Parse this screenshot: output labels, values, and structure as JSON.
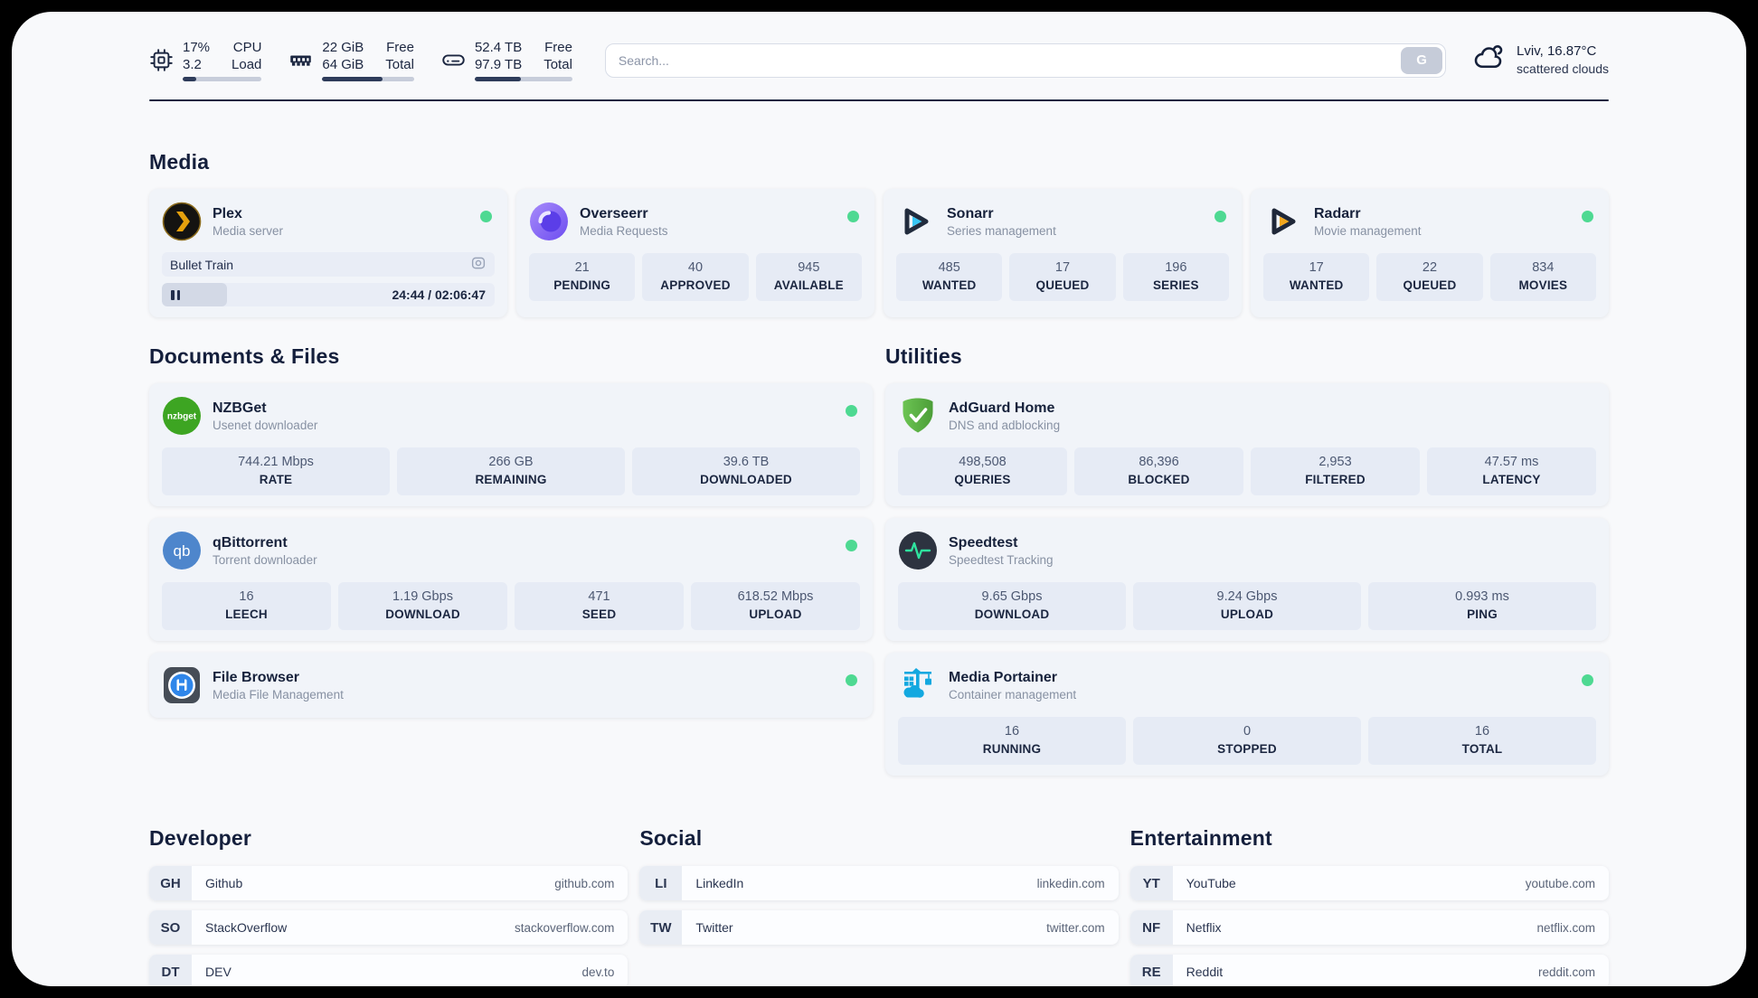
{
  "header": {
    "stats": [
      {
        "icon": "cpu-icon",
        "values": [
          "17%",
          "3.2"
        ],
        "labels": [
          "CPU",
          "Load"
        ],
        "progress": 17
      },
      {
        "icon": "memory-icon",
        "values": [
          "22 GiB",
          "64 GiB"
        ],
        "labels": [
          "Free",
          "Total"
        ],
        "progress": 66
      },
      {
        "icon": "disk-icon",
        "values": [
          "52.4 TB",
          "97.9 TB"
        ],
        "labels": [
          "Free",
          "Total"
        ],
        "progress": 47
      }
    ],
    "search": {
      "placeholder": "Search...",
      "button_label": "G"
    },
    "weather": {
      "location": "Lviv, 16.87°C",
      "condition": "scattered clouds"
    }
  },
  "sections": {
    "media": {
      "title": "Media",
      "apps": [
        {
          "name": "Plex",
          "description": "Media server",
          "icon": "plex-icon",
          "online": true,
          "player": {
            "title": "Bullet Train",
            "time": "24:44 / 02:06:47",
            "progress": 19.5
          }
        },
        {
          "name": "Overseerr",
          "description": "Media Requests",
          "icon": "overseerr-icon",
          "online": true,
          "stats": [
            {
              "value": "21",
              "label": "PENDING"
            },
            {
              "value": "40",
              "label": "APPROVED"
            },
            {
              "value": "945",
              "label": "AVAILABLE"
            }
          ]
        },
        {
          "name": "Sonarr",
          "description": "Series management",
          "icon": "sonarr-icon",
          "online": true,
          "stats": [
            {
              "value": "485",
              "label": "WANTED"
            },
            {
              "value": "17",
              "label": "QUEUED"
            },
            {
              "value": "196",
              "label": "SERIES"
            }
          ]
        },
        {
          "name": "Radarr",
          "description": "Movie management",
          "icon": "radarr-icon",
          "online": true,
          "stats": [
            {
              "value": "17",
              "label": "WANTED"
            },
            {
              "value": "22",
              "label": "QUEUED"
            },
            {
              "value": "834",
              "label": "MOVIES"
            }
          ]
        }
      ]
    },
    "documents": {
      "title": "Documents & Files",
      "apps": [
        {
          "name": "NZBGet",
          "description": "Usenet downloader",
          "icon": "nzbget-icon",
          "online": true,
          "stats": [
            {
              "value": "744.21 Mbps",
              "label": "RATE"
            },
            {
              "value": "266 GB",
              "label": "REMAINING"
            },
            {
              "value": "39.6 TB",
              "label": "DOWNLOADED"
            }
          ]
        },
        {
          "name": "qBittorrent",
          "description": "Torrent downloader",
          "icon": "qbittorrent-icon",
          "online": true,
          "stats": [
            {
              "value": "16",
              "label": "LEECH"
            },
            {
              "value": "1.19 Gbps",
              "label": "DOWNLOAD"
            },
            {
              "value": "471",
              "label": "SEED"
            },
            {
              "value": "618.52 Mbps",
              "label": "UPLOAD"
            }
          ]
        },
        {
          "name": "File Browser",
          "description": "Media File Management",
          "icon": "filebrowser-icon",
          "online": true,
          "stats": []
        }
      ]
    },
    "utilities": {
      "title": "Utilities",
      "apps": [
        {
          "name": "AdGuard Home",
          "description": "DNS and adblocking",
          "icon": "adguard-icon",
          "stats": [
            {
              "value": "498,508",
              "label": "QUERIES"
            },
            {
              "value": "86,396",
              "label": "BLOCKED"
            },
            {
              "value": "2,953",
              "label": "FILTERED"
            },
            {
              "value": "47.57 ms",
              "label": "LATENCY"
            }
          ]
        },
        {
          "name": "Speedtest",
          "description": "Speedtest Tracking",
          "icon": "speedtest-icon",
          "stats": [
            {
              "value": "9.65 Gbps",
              "label": "DOWNLOAD"
            },
            {
              "value": "9.24 Gbps",
              "label": "UPLOAD"
            },
            {
              "value": "0.993 ms",
              "label": "PING"
            }
          ]
        },
        {
          "name": "Media Portainer",
          "description": "Container management",
          "icon": "portainer-icon",
          "online": true,
          "stats": [
            {
              "value": "16",
              "label": "RUNNING"
            },
            {
              "value": "0",
              "label": "STOPPED"
            },
            {
              "value": "16",
              "label": "TOTAL"
            }
          ]
        }
      ]
    },
    "bookmarks": [
      {
        "title": "Developer",
        "links": [
          {
            "abbr": "GH",
            "name": "Github",
            "url": "github.com"
          },
          {
            "abbr": "SO",
            "name": "StackOverflow",
            "url": "stackoverflow.com"
          },
          {
            "abbr": "DT",
            "name": "DEV",
            "url": "dev.to"
          }
        ]
      },
      {
        "title": "Social",
        "links": [
          {
            "abbr": "LI",
            "name": "LinkedIn",
            "url": "linkedin.com"
          },
          {
            "abbr": "TW",
            "name": "Twitter",
            "url": "twitter.com"
          }
        ]
      },
      {
        "title": "Entertainment",
        "links": [
          {
            "abbr": "YT",
            "name": "YouTube",
            "url": "youtube.com"
          },
          {
            "abbr": "NF",
            "name": "Netflix",
            "url": "netflix.com"
          },
          {
            "abbr": "RE",
            "name": "Reddit",
            "url": "reddit.com"
          }
        ]
      }
    ]
  },
  "colors": {
    "accent_green": "#4ed992",
    "navy": "#1b2640"
  }
}
